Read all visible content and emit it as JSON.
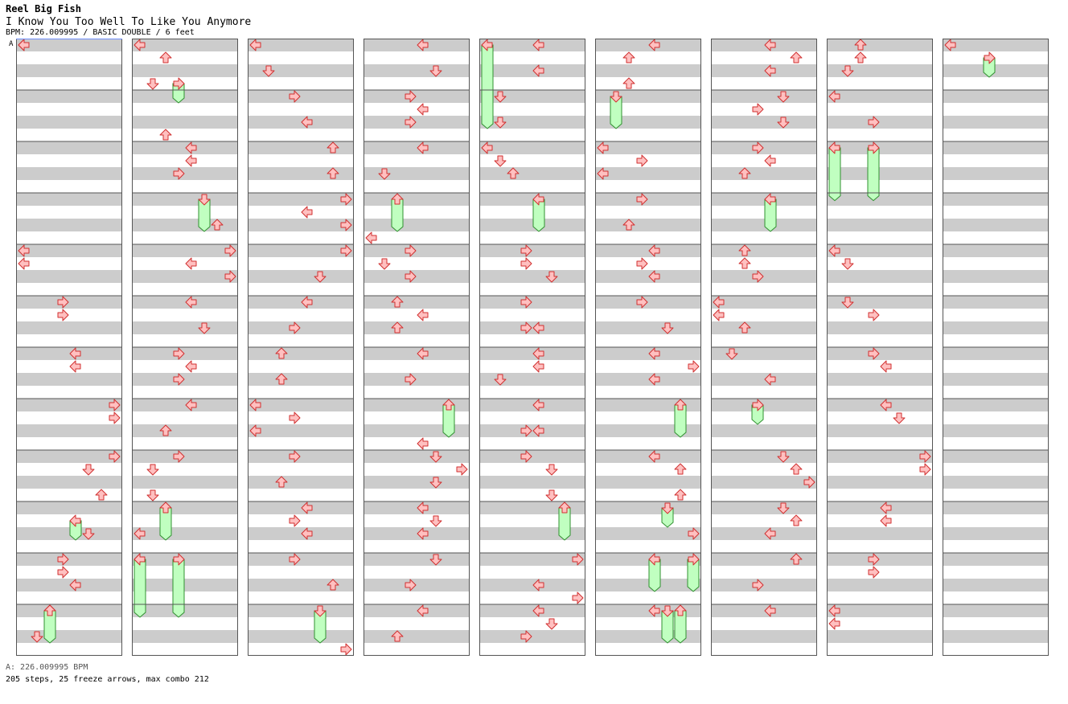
{
  "header": {
    "artist": "Reel Big Fish",
    "title": "I Know You Too Well To Like You Anymore",
    "info": "BPM: 226.009995 / BASIC DOUBLE / 6 feet"
  },
  "chart_data": {
    "type": "step-chart",
    "columns": 9,
    "measures_per_column": 12,
    "lanes": [
      "left",
      "down",
      "up",
      "right",
      "left",
      "down",
      "up",
      "right"
    ],
    "bpm_marker_label": "A",
    "arrow_color": "#ffc0c0",
    "freeze_color": "#c0ffc0",
    "stripe_color": "#cccccc",
    "notes": [
      [
        0,
        0,
        0
      ],
      [
        0,
        0,
        0
      ],
      [
        0,
        0,
        0
      ],
      [
        0,
        0,
        0
      ],
      [
        0,
        4,
        0,
        0
      ],
      [
        0,
        4.25,
        0,
        0
      ],
      [
        0,
        5,
        3,
        3
      ],
      [
        0,
        5.25,
        3,
        3
      ],
      [
        0,
        6,
        4,
        4
      ],
      [
        0,
        6.25,
        4,
        4
      ],
      [
        0,
        7,
        7,
        7
      ],
      [
        0,
        7.25,
        7,
        7
      ],
      [
        0,
        8,
        7,
        7
      ],
      [
        0,
        8.25,
        5,
        5
      ],
      [
        0,
        8.75,
        6,
        6
      ],
      [
        0,
        9.5,
        5,
        5
      ],
      [
        0,
        10,
        3,
        3
      ],
      [
        0,
        10.25,
        3,
        3
      ],
      [
        0,
        10.5,
        4,
        4
      ],
      [
        0,
        11,
        2,
        2
      ],
      [
        0,
        11.5,
        1,
        1
      ],
      [
        1,
        0,
        0,
        0
      ],
      [
        1,
        0.25,
        2,
        2
      ],
      [
        1,
        0.75,
        1,
        1
      ],
      [
        1,
        1.75,
        2,
        2
      ],
      [
        1,
        2,
        4,
        4
      ],
      [
        1,
        2.25,
        4,
        4
      ],
      [
        1,
        2.5,
        3,
        3
      ],
      [
        1,
        3.5,
        6,
        6
      ],
      [
        1,
        4,
        7,
        7
      ],
      [
        1,
        4.25,
        4,
        4
      ],
      [
        1,
        4.5,
        7,
        7
      ],
      [
        1,
        5,
        4,
        4
      ],
      [
        1,
        5.5,
        5,
        5
      ],
      [
        1,
        6,
        3,
        3
      ],
      [
        1,
        6.25,
        4,
        4
      ],
      [
        1,
        6.5,
        3,
        3
      ],
      [
        1,
        7,
        4,
        4
      ],
      [
        1,
        7.5,
        2,
        2
      ],
      [
        1,
        8,
        3,
        3
      ],
      [
        1,
        8.25,
        1,
        1
      ],
      [
        1,
        8.75,
        1,
        1
      ],
      [
        1,
        9.5,
        0,
        0
      ],
      [
        1,
        10,
        0,
        0
      ],
      [
        2,
        0,
        0,
        0
      ],
      [
        2,
        0.5,
        1,
        1
      ],
      [
        2,
        1,
        3,
        3
      ],
      [
        2,
        1.5,
        4,
        4
      ],
      [
        2,
        2,
        6,
        6
      ],
      [
        2,
        2.5,
        6,
        6
      ],
      [
        2,
        3,
        7,
        7
      ],
      [
        2,
        3.25,
        4,
        4
      ],
      [
        2,
        3.5,
        7,
        7
      ],
      [
        2,
        4,
        7,
        7
      ],
      [
        2,
        4.5,
        5,
        5
      ],
      [
        2,
        5,
        4,
        4
      ],
      [
        2,
        5.5,
        3,
        3
      ],
      [
        2,
        6,
        2,
        2
      ],
      [
        2,
        6.5,
        2,
        2
      ],
      [
        2,
        7,
        0,
        0
      ],
      [
        2,
        7.25,
        3,
        3
      ],
      [
        2,
        7.5,
        0,
        0
      ],
      [
        2,
        8,
        3,
        3
      ],
      [
        2,
        8.5,
        2,
        2
      ],
      [
        2,
        9,
        4,
        4
      ],
      [
        2,
        9.25,
        3,
        3
      ],
      [
        2,
        9.5,
        4,
        4
      ],
      [
        2,
        10,
        3,
        3
      ],
      [
        2,
        10.5,
        6,
        6
      ],
      [
        2,
        11.75,
        7,
        7
      ],
      [
        3,
        0,
        4,
        4
      ],
      [
        3,
        0.5,
        5,
        5
      ],
      [
        3,
        1,
        3,
        3
      ],
      [
        3,
        1.25,
        4,
        4
      ],
      [
        3,
        1.5,
        3,
        3
      ],
      [
        3,
        2,
        4,
        4
      ],
      [
        3,
        2.5,
        1,
        1
      ],
      [
        3,
        3.75,
        0,
        0
      ],
      [
        3,
        4,
        3,
        3
      ],
      [
        3,
        4.25,
        1,
        1
      ],
      [
        3,
        4.5,
        3,
        3
      ],
      [
        3,
        5,
        2,
        2
      ],
      [
        3,
        5.25,
        4,
        4
      ],
      [
        3,
        5.5,
        2,
        2
      ],
      [
        3,
        6,
        4,
        4
      ],
      [
        3,
        6.5,
        3,
        3
      ],
      [
        3,
        7.75,
        4,
        4
      ],
      [
        3,
        8,
        5,
        5
      ],
      [
        3,
        8.25,
        7,
        7
      ],
      [
        3,
        8.5,
        5,
        5
      ],
      [
        3,
        9,
        4,
        4
      ],
      [
        3,
        9.25,
        5,
        5
      ],
      [
        3,
        9.5,
        4,
        4
      ],
      [
        3,
        10,
        5,
        5
      ],
      [
        3,
        10.5,
        3,
        3
      ],
      [
        3,
        11,
        4,
        4
      ],
      [
        3,
        11.5,
        2,
        2
      ],
      [
        4,
        0,
        4,
        4
      ],
      [
        4,
        0.5,
        4,
        4
      ],
      [
        4,
        1,
        1,
        1
      ],
      [
        4,
        1.5,
        1,
        1
      ],
      [
        4,
        2,
        0,
        0
      ],
      [
        4,
        2.25,
        1,
        1
      ],
      [
        4,
        2.5,
        2,
        2
      ],
      [
        4,
        4,
        3,
        3
      ],
      [
        4,
        4.25,
        3,
        3
      ],
      [
        4,
        4.5,
        5,
        5
      ],
      [
        4,
        5,
        3,
        3
      ],
      [
        4,
        5.5,
        3,
        3
      ],
      [
        4,
        5.5,
        4,
        4
      ],
      [
        4,
        6,
        4,
        4
      ],
      [
        4,
        6.25,
        4,
        4
      ],
      [
        4,
        6.5,
        1,
        1
      ],
      [
        4,
        7,
        4,
        4
      ],
      [
        4,
        7.5,
        3,
        3
      ],
      [
        4,
        7.5,
        4,
        4
      ],
      [
        4,
        8,
        3,
        3
      ],
      [
        4,
        8.25,
        5,
        5
      ],
      [
        4,
        8.75,
        5,
        5
      ],
      [
        4,
        10,
        7,
        7
      ],
      [
        4,
        10.5,
        4,
        4
      ],
      [
        4,
        10.75,
        7,
        7
      ],
      [
        4,
        11,
        4,
        4
      ],
      [
        4,
        11.25,
        5,
        5
      ],
      [
        4,
        11.5,
        3,
        3
      ],
      [
        5,
        0,
        4,
        4
      ],
      [
        5,
        0.25,
        2,
        2
      ],
      [
        5,
        0.75,
        2,
        2
      ],
      [
        5,
        2,
        0,
        0
      ],
      [
        5,
        2.25,
        3,
        3
      ],
      [
        5,
        2.5,
        0,
        0
      ],
      [
        5,
        3,
        3,
        3
      ],
      [
        5,
        3.5,
        2,
        2
      ],
      [
        5,
        4,
        4,
        4
      ],
      [
        5,
        4.25,
        3,
        3
      ],
      [
        5,
        4.5,
        4,
        4
      ],
      [
        5,
        5,
        3,
        3
      ],
      [
        5,
        5.5,
        5,
        5
      ],
      [
        5,
        6,
        4,
        4
      ],
      [
        5,
        6.25,
        7,
        7
      ],
      [
        5,
        6.5,
        4,
        4
      ],
      [
        5,
        8,
        4,
        4
      ],
      [
        5,
        8.25,
        6,
        6
      ],
      [
        5,
        8.75,
        6,
        6
      ],
      [
        5,
        9.5,
        7,
        7
      ],
      [
        5,
        11,
        4,
        4
      ],
      [
        6,
        0,
        4,
        4
      ],
      [
        6,
        0.25,
        6,
        6
      ],
      [
        6,
        0.5,
        4,
        4
      ],
      [
        6,
        1,
        5,
        5
      ],
      [
        6,
        1.25,
        3,
        3
      ],
      [
        6,
        1.5,
        5,
        5
      ],
      [
        6,
        2,
        3,
        3
      ],
      [
        6,
        2.25,
        4,
        4
      ],
      [
        6,
        2.5,
        2,
        2
      ],
      [
        6,
        4,
        2,
        2
      ],
      [
        6,
        4.25,
        2,
        2
      ],
      [
        6,
        4.5,
        3,
        3
      ],
      [
        6,
        5,
        0,
        0
      ],
      [
        6,
        5.25,
        0,
        0
      ],
      [
        6,
        5.5,
        2,
        2
      ],
      [
        6,
        6,
        1,
        1
      ],
      [
        6,
        6.5,
        4,
        4
      ],
      [
        6,
        8,
        5,
        5
      ],
      [
        6,
        8.25,
        6,
        6
      ],
      [
        6,
        8.5,
        7,
        7
      ],
      [
        6,
        9,
        5,
        5
      ],
      [
        6,
        9.25,
        6,
        6
      ],
      [
        6,
        9.5,
        4,
        4
      ],
      [
        6,
        10,
        6,
        6
      ],
      [
        6,
        10.5,
        3,
        3
      ],
      [
        6,
        11,
        4,
        4
      ],
      [
        7,
        0,
        2,
        2
      ],
      [
        7,
        0.25,
        2,
        2
      ],
      [
        7,
        0.5,
        1,
        1
      ],
      [
        7,
        1,
        0,
        0
      ],
      [
        7,
        1.5,
        3,
        3
      ],
      [
        7,
        4,
        0,
        0
      ],
      [
        7,
        4.25,
        1,
        1
      ],
      [
        7,
        5,
        1,
        1
      ],
      [
        7,
        5.25,
        3,
        3
      ],
      [
        7,
        6,
        3,
        3
      ],
      [
        7,
        6.25,
        4,
        4
      ],
      [
        7,
        7,
        4,
        4
      ],
      [
        7,
        7.25,
        5,
        5
      ],
      [
        7,
        8,
        7,
        7
      ],
      [
        7,
        8.25,
        7,
        7
      ],
      [
        7,
        9,
        4,
        4
      ],
      [
        7,
        9.25,
        4,
        4
      ],
      [
        7,
        10,
        3,
        3
      ],
      [
        7,
        10.25,
        3,
        3
      ],
      [
        7,
        11,
        0,
        0
      ],
      [
        7,
        11.25,
        0,
        0
      ],
      [
        8,
        0,
        0,
        0
      ]
    ],
    "freezes": [
      [
        0,
        9.25,
        0.25,
        4
      ],
      [
        0,
        11,
        0.5,
        2
      ],
      [
        1,
        0.75,
        0.25,
        3
      ],
      [
        1,
        3,
        0.5,
        5
      ],
      [
        1,
        9,
        0.5,
        2
      ],
      [
        1,
        10,
        1.0,
        0
      ],
      [
        1,
        10,
        1.0,
        3
      ],
      [
        2,
        11,
        0.5,
        5
      ],
      [
        3,
        3,
        0.5,
        2
      ],
      [
        3,
        7,
        0.5,
        6
      ],
      [
        4,
        0,
        1.5,
        0
      ],
      [
        4,
        3,
        0.5,
        4
      ],
      [
        4,
        9,
        0.5,
        6
      ],
      [
        5,
        1,
        0.5,
        1
      ],
      [
        5,
        7,
        0.5,
        6
      ],
      [
        5,
        9,
        0.25,
        5
      ],
      [
        5,
        10,
        0.5,
        4
      ],
      [
        5,
        10,
        0.5,
        7
      ],
      [
        5,
        11,
        0.5,
        5
      ],
      [
        5,
        11,
        0.5,
        6
      ],
      [
        6,
        3,
        0.5,
        4
      ],
      [
        6,
        7,
        0.25,
        3
      ],
      [
        7,
        2,
        0.9,
        0
      ],
      [
        7,
        2,
        0.9,
        3
      ],
      [
        8,
        0.25,
        0.25,
        3
      ]
    ]
  },
  "footer": {
    "bpm_text": "A: 226.009995 BPM",
    "stats": "205 steps, 25 freeze arrows, max combo 212"
  }
}
